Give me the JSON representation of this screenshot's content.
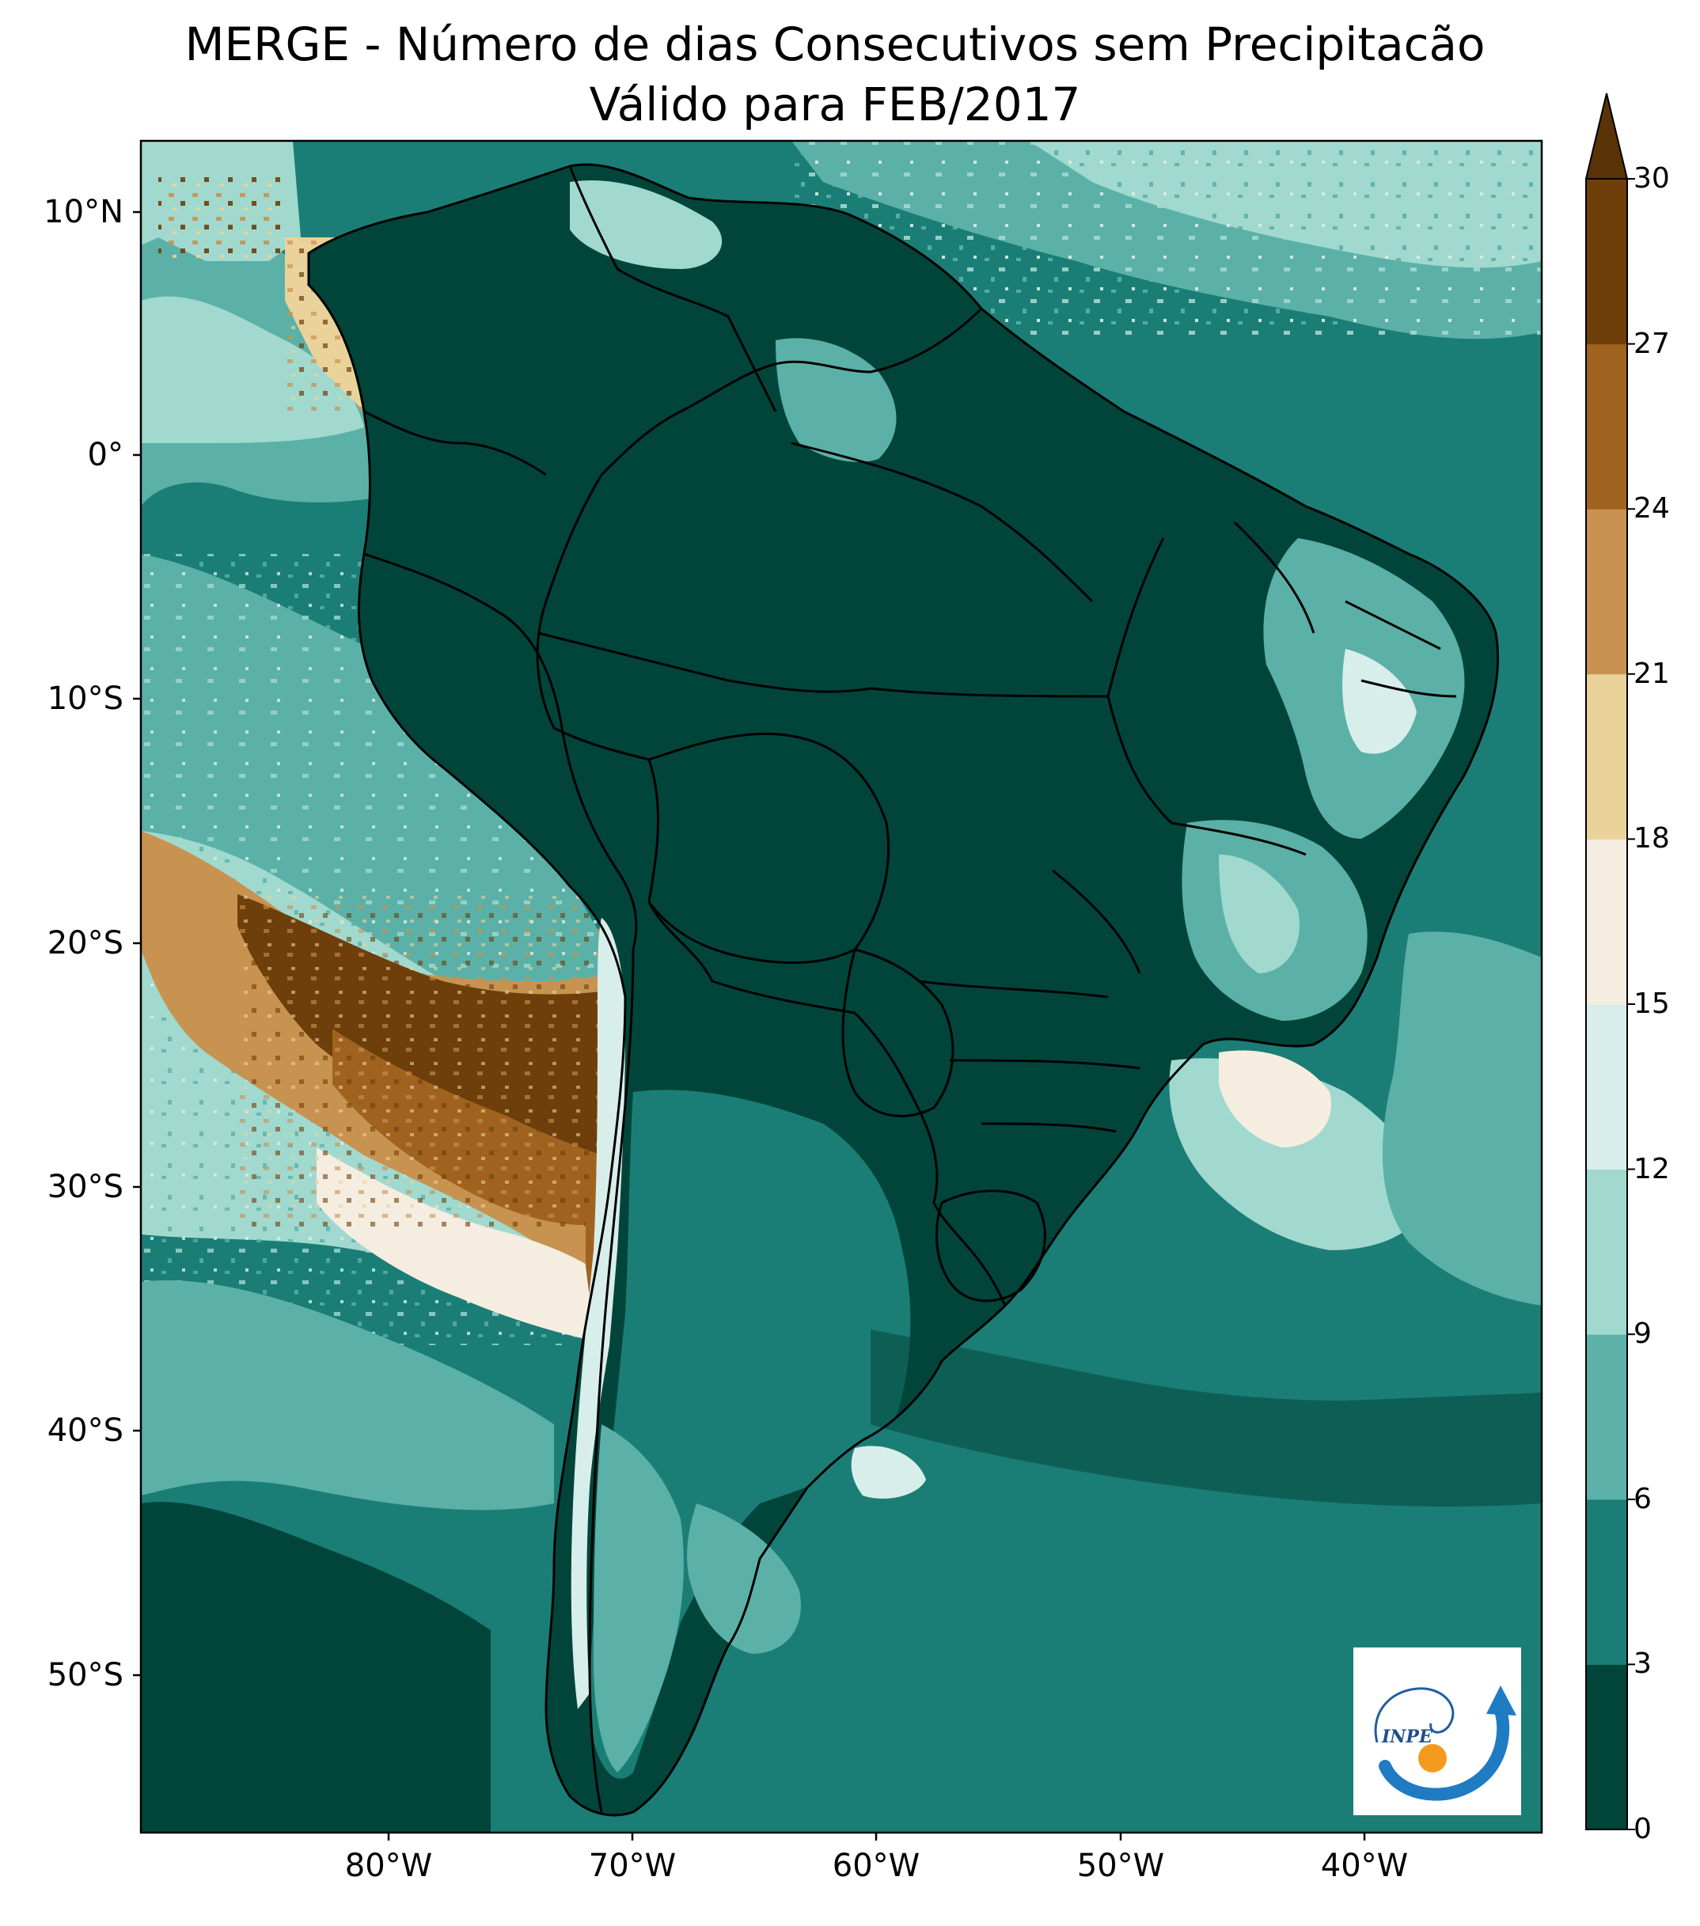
{
  "title": {
    "line1": "MERGE - Número de dias Consecutivos sem Precipitacão",
    "line2": "Válido para FEB/2017"
  },
  "axes": {
    "lat_ticks": [
      "10°N",
      "0°",
      "10°S",
      "20°S",
      "30°S",
      "40°S",
      "50°S"
    ],
    "lon_ticks": [
      "80°W",
      "70°W",
      "60°W",
      "50°W",
      "40°W"
    ]
  },
  "colorbar": {
    "ticks": [
      "0",
      "3",
      "6",
      "9",
      "12",
      "15",
      "18",
      "21",
      "24",
      "27",
      "30"
    ],
    "colors": [
      "#01453a",
      "#1b7e76",
      "#5bb1a7",
      "#a1d9cf",
      "#d8eeeb",
      "#f5ede0",
      "#ead29b",
      "#c89350",
      "#a0631f",
      "#6e3f0a"
    ],
    "extend_color": "#5a3306",
    "extend": "max"
  },
  "logo": {
    "text": "INPE"
  },
  "map": {
    "ocean_color": "#1b7e76",
    "land_color": "#01453a",
    "dry_colors": [
      "#a0631f",
      "#6e3f0a",
      "#c89350",
      "#f5ede0",
      "#ead29b"
    ]
  }
}
